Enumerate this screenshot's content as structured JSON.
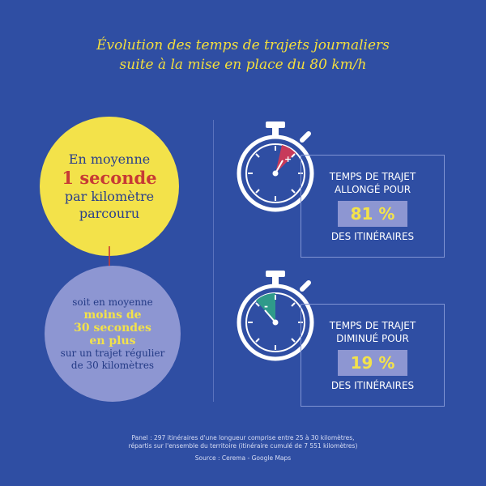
{
  "title": {
    "line1": "Évolution des temps de trajets journaliers",
    "line2": "suite à la mise en place du 80 km/h"
  },
  "left": {
    "yellow": {
      "line1": "En moyenne",
      "highlight": "1 seconde",
      "line3": "par kilomètre",
      "line4": "parcouru"
    },
    "purple": {
      "line1": "soit en moyenne",
      "bold1": "moins de",
      "bold2": "30 secondes",
      "bold3": "en plus",
      "line5": "sur un trajet régulier",
      "line6": "de 30 kilomètres"
    }
  },
  "stats": [
    {
      "line1": "TEMPS DE TRAJET",
      "line2": "ALLONGÉ POUR",
      "value": "81 %",
      "line4": "DES ITINÉRAIRES",
      "sign": "+",
      "wedge_color": "#c73a5a"
    },
    {
      "line1": "TEMPS DE TRAJET",
      "line2": "DIMINUÉ POUR",
      "value": "19 %",
      "line4": "DES ITINÉRAIRES",
      "sign": "-",
      "wedge_color": "#2f9a8a"
    }
  ],
  "footer": {
    "line1": "Panel : 297 itinéraires d'une longueur comprise entre 25 à 30 kilomètres,",
    "line2": "répartis sur l'ensemble du territoire (itinéraire cumulé de 7 551 kilomètres)",
    "source": "Source : Cerema - Google Maps"
  },
  "colors": {
    "background": "#2f4ea3",
    "yellow": "#f3e24a",
    "lavender": "#8d96d2",
    "red": "#c73a35"
  }
}
